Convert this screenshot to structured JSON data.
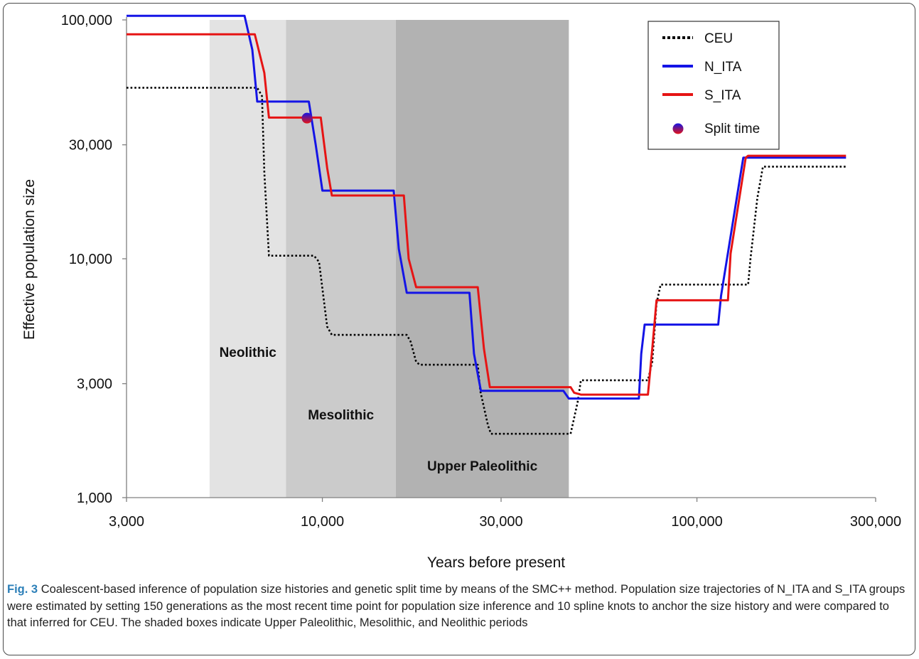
{
  "figure": {
    "caption_label": "Fig. 3",
    "caption_text": "Coalescent-based inference of population size histories and genetic split time by means of the SMC++ method. Population size trajectories of N_ITA and S_ITA groups were estimated by setting 150 generations as the most recent time point for population size inference and 10 spline knots to anchor the size history and were compared to that inferred for CEU. The shaded boxes indicate Upper Paleolithic, Mesolithic, and Neolithic periods"
  },
  "chart_data": {
    "type": "line",
    "xlabel": "Years before present",
    "ylabel": "Effective population size",
    "x_scale": "log",
    "y_scale": "log",
    "xlim": [
      3000,
      300000
    ],
    "ylim": [
      1000,
      100000
    ],
    "x_ticks": [
      3000,
      10000,
      30000,
      100000,
      300000
    ],
    "x_tick_labels": [
      "3,000",
      "10,000",
      "30,000",
      "100,000",
      "300,000"
    ],
    "y_ticks": [
      1000,
      3000,
      10000,
      30000,
      100000
    ],
    "y_tick_labels": [
      "1,000",
      "3,000",
      "10,000",
      "30,000",
      "100,000"
    ],
    "grid": false,
    "legend_position": "top-right",
    "periods": [
      {
        "label": "Neolithic",
        "start": 5000,
        "end": 8000,
        "color": "#e3e3e3"
      },
      {
        "label": "Mesolithic",
        "start": 8000,
        "end": 15700,
        "color": "#cbcbcb"
      },
      {
        "label": "Upper Paleolithic",
        "start": 15700,
        "end": 45500,
        "color": "#b2b2b2"
      }
    ],
    "series": [
      {
        "name": "CEU",
        "color": "#000000",
        "style": "dotted",
        "x": [
          3000,
          6700,
          6900,
          7000,
          7200,
          9500,
          9800,
          10300,
          10600,
          16800,
          17200,
          17800,
          18200,
          26000,
          26400,
          27700,
          28200,
          46000,
          48000,
          49000,
          50000,
          74000,
          76000,
          78000,
          80000,
          137000,
          139000,
          145000,
          150000,
          250000
        ],
        "y": [
          52000,
          52000,
          48000,
          23000,
          10300,
          10300,
          9700,
          5200,
          4800,
          4800,
          4500,
          3700,
          3600,
          3600,
          2800,
          2000,
          1850,
          1850,
          2500,
          3100,
          3100,
          3100,
          3700,
          6500,
          7800,
          7800,
          10000,
          18000,
          24300,
          24300
        ]
      },
      {
        "name": "N_ITA",
        "color": "#1414e6",
        "style": "solid",
        "x": [
          3000,
          6200,
          6500,
          6700,
          9200,
          9600,
          10000,
          15500,
          16000,
          16800,
          24700,
          25400,
          26500,
          44000,
          45500,
          70000,
          71000,
          72500,
          114000,
          116000,
          131000,
          133000,
          250000
        ],
        "y": [
          104000,
          104000,
          75000,
          45500,
          45500,
          30000,
          19300,
          19300,
          11000,
          7200,
          7200,
          4000,
          2800,
          2800,
          2600,
          2600,
          4000,
          5300,
          5300,
          7000,
          23000,
          26500,
          26500
        ]
      },
      {
        "name": "S_ITA",
        "color": "#e61414",
        "style": "solid",
        "x": [
          3000,
          6600,
          7000,
          7200,
          9900,
          10300,
          10600,
          16500,
          17000,
          17800,
          26000,
          27000,
          28000,
          46000,
          47000,
          49000,
          74000,
          76000,
          78000,
          121000,
          123000,
          135000,
          137000,
          250000
        ],
        "y": [
          87000,
          87000,
          60000,
          39000,
          39000,
          24000,
          18400,
          18400,
          10000,
          7600,
          7600,
          4200,
          2900,
          2900,
          2750,
          2700,
          2700,
          4200,
          6700,
          6700,
          10500,
          26500,
          27000,
          27000
        ]
      }
    ],
    "annotations": [
      {
        "label": "Split time",
        "x": 9100,
        "y": 38800,
        "colors": [
          "#1414e6",
          "#e61414"
        ]
      }
    ]
  }
}
